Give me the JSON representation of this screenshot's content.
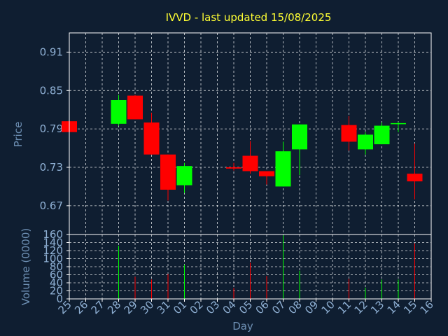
{
  "chart_data": {
    "type": "candlestick",
    "title": "IVVD - last updated 15/08/2025",
    "xlabel": "Day",
    "price_panel": {
      "ylabel": "Price",
      "ylim": [
        0.625,
        0.94
      ],
      "yticks": [
        "0.91",
        "0.85",
        "0.79",
        "0.73",
        "0.67"
      ],
      "ytick_values": [
        0.91,
        0.85,
        0.79,
        0.73,
        0.67
      ]
    },
    "volume_panel": {
      "ylabel": "Volume (0000)",
      "ylim": [
        0,
        160
      ],
      "yticks": [
        "160",
        "140",
        "120",
        "100",
        "80",
        "60",
        "40",
        "20",
        "0"
      ],
      "ytick_values": [
        160,
        140,
        120,
        100,
        80,
        60,
        40,
        20,
        0
      ]
    },
    "days": [
      "25",
      "26",
      "27",
      "28",
      "29",
      "30",
      "31",
      "01",
      "02",
      "03",
      "04",
      "05",
      "06",
      "07",
      "08",
      "09",
      "10",
      "11",
      "12",
      "13",
      "14",
      "15",
      "16"
    ],
    "candles": [
      {
        "day": "25",
        "open": 0.802,
        "high": 0.802,
        "low": 0.785,
        "close": 0.785
      },
      {
        "day": "28",
        "open": 0.798,
        "high": 0.843,
        "low": 0.795,
        "close": 0.835
      },
      {
        "day": "29",
        "open": 0.842,
        "high": 0.843,
        "low": 0.805,
        "close": 0.805
      },
      {
        "day": "30",
        "open": 0.8,
        "high": 0.815,
        "low": 0.75,
        "close": 0.75
      },
      {
        "day": "31",
        "open": 0.75,
        "high": 0.75,
        "low": 0.678,
        "close": 0.695
      },
      {
        "day": "01",
        "open": 0.702,
        "high": 0.737,
        "low": 0.69,
        "close": 0.732
      },
      {
        "day": "04",
        "open": 0.73,
        "high": 0.737,
        "low": 0.725,
        "close": 0.728
      },
      {
        "day": "05",
        "open": 0.748,
        "high": 0.771,
        "low": 0.72,
        "close": 0.724
      },
      {
        "day": "06",
        "open": 0.724,
        "high": 0.724,
        "low": 0.703,
        "close": 0.716
      },
      {
        "day": "07",
        "open": 0.7,
        "high": 0.77,
        "low": 0.7,
        "close": 0.755
      },
      {
        "day": "08",
        "open": 0.758,
        "high": 0.797,
        "low": 0.718,
        "close": 0.797
      },
      {
        "day": "11",
        "open": 0.796,
        "high": 0.81,
        "low": 0.756,
        "close": 0.77
      },
      {
        "day": "12",
        "open": 0.758,
        "high": 0.785,
        "low": 0.75,
        "close": 0.781
      },
      {
        "day": "13",
        "open": 0.766,
        "high": 0.8,
        "low": 0.766,
        "close": 0.795
      },
      {
        "day": "14",
        "open": 0.799,
        "high": 0.801,
        "low": 0.785,
        "close": 0.799
      },
      {
        "day": "15",
        "open": 0.72,
        "high": 0.767,
        "low": 0.68,
        "close": 0.708
      }
    ],
    "volumes": [
      {
        "day": "28",
        "value": 132
      },
      {
        "day": "29",
        "value": 55
      },
      {
        "day": "30",
        "value": 48
      },
      {
        "day": "31",
        "value": 62
      },
      {
        "day": "01",
        "value": 85
      },
      {
        "day": "04",
        "value": 27
      },
      {
        "day": "05",
        "value": 90
      },
      {
        "day": "06",
        "value": 57
      },
      {
        "day": "07",
        "value": 158
      },
      {
        "day": "08",
        "value": 70
      },
      {
        "day": "11",
        "value": 50
      },
      {
        "day": "12",
        "value": 28
      },
      {
        "day": "13",
        "value": 48
      },
      {
        "day": "14",
        "value": 48
      },
      {
        "day": "15",
        "value": 138
      }
    ],
    "colors": {
      "background": "#0f1e31",
      "up": "#00ff00",
      "down": "#ff0000",
      "grid": "#ffffff",
      "title": "#ffff33",
      "axis_text": "#8fb0d4"
    }
  }
}
